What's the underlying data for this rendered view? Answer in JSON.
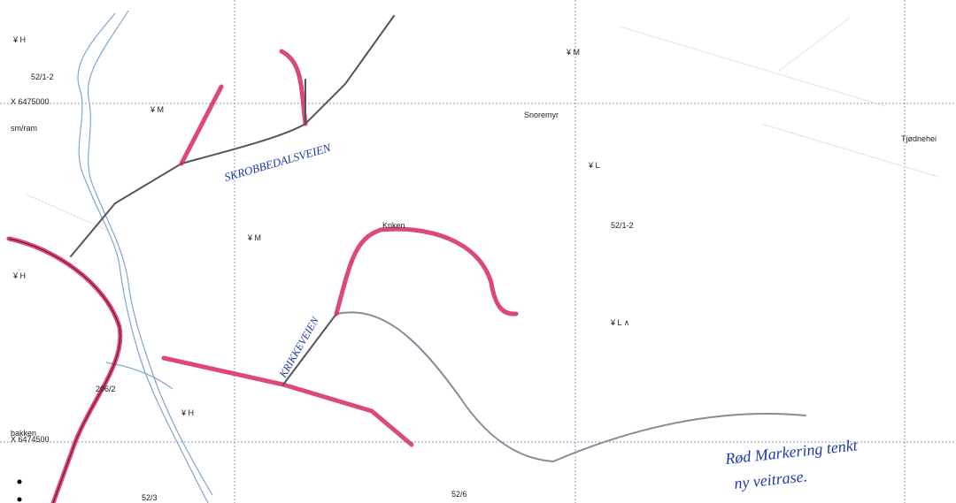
{
  "map": {
    "grid_labels": [
      "X 6475000",
      "X 6474500"
    ],
    "place_names": [
      "Snoremyr",
      "Tjødnehei",
      "Kriken",
      "bakken",
      "sm/ram"
    ],
    "parcel_labels": [
      "52/1-2",
      "52/1-2",
      "206/2",
      "52/3",
      "52/6"
    ],
    "road_names": [
      "SKROBBEDALSVEIEN",
      "KRIKKEVEIEN"
    ],
    "note": [
      "Rød Markering tenkt",
      "ny veitrase."
    ]
  }
}
